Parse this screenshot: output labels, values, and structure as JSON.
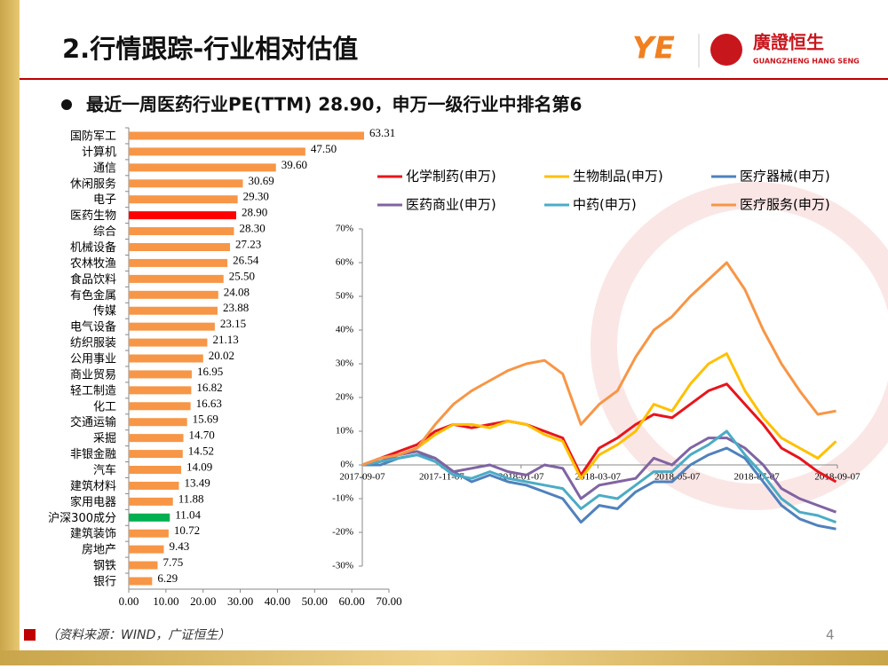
{
  "title": "2.行情跟踪-行业相对估值",
  "logo": {
    "cn": "廣證恒生",
    "en": "GUANGZHENG HANG SENG"
  },
  "bullet": "最近一周医药行业PE(TTM) 28.90，申万一级行业中排名第6",
  "source": "（资料来源：WIND，广证恒生）",
  "page_number": 4,
  "chart_data": [
    {
      "type": "hbar",
      "categories": [
        "国防军工",
        "计算机",
        "通信",
        "休闲服务",
        "电子",
        "医药生物",
        "综合",
        "机械设备",
        "农林牧渔",
        "食品饮料",
        "有色金属",
        "传媒",
        "电气设备",
        "纺织服装",
        "公用事业",
        "商业贸易",
        "轻工制造",
        "化工",
        "交通运输",
        "采掘",
        "非银金融",
        "汽车",
        "建筑材料",
        "家用电器",
        "沪深300成分",
        "建筑装饰",
        "房地产",
        "钢铁",
        "银行"
      ],
      "values": [
        63.31,
        47.5,
        39.6,
        30.69,
        29.3,
        28.9,
        28.3,
        27.23,
        26.54,
        25.5,
        24.08,
        23.88,
        23.15,
        21.13,
        20.02,
        16.95,
        16.82,
        16.63,
        15.69,
        14.7,
        14.52,
        14.09,
        13.49,
        11.88,
        11.04,
        10.72,
        9.43,
        7.75,
        6.29
      ],
      "value_labels": [
        "63.31",
        "47.50",
        "39.60",
        "30.69",
        "29.30",
        "28.90",
        "28.30",
        "27.23",
        "26.54",
        "25.50",
        "24.08",
        "23.88",
        "23.15",
        "21.13",
        "20.02",
        "16.95",
        "16.82",
        "16.63",
        "15.69",
        "14.70",
        "14.52",
        "14.09",
        "13.49",
        "11.88",
        "11.04",
        "10.72",
        "9.43",
        "7.75",
        "6.29"
      ],
      "colors": [
        "#f79646",
        "#f79646",
        "#f79646",
        "#f79646",
        "#f79646",
        "#ff0000",
        "#f79646",
        "#f79646",
        "#f79646",
        "#f79646",
        "#f79646",
        "#f79646",
        "#f79646",
        "#f79646",
        "#f79646",
        "#f79646",
        "#f79646",
        "#f79646",
        "#f79646",
        "#f79646",
        "#f79646",
        "#f79646",
        "#f79646",
        "#f79646",
        "#00b050",
        "#f79646",
        "#f79646",
        "#f79646",
        "#f79646"
      ],
      "xlim": [
        0,
        70
      ],
      "xticks": [
        {
          "value": 0,
          "label": "0.00"
        },
        {
          "value": 10,
          "label": "10.00"
        },
        {
          "value": 20,
          "label": "20.00"
        },
        {
          "value": 30,
          "label": "30.00"
        },
        {
          "value": 40,
          "label": "40.00"
        },
        {
          "value": 50,
          "label": "50.00"
        },
        {
          "value": 60,
          "label": "60.00"
        },
        {
          "value": 70,
          "label": "70.00"
        }
      ]
    },
    {
      "type": "line",
      "x": [
        "2017-09-07",
        "2017-09-21",
        "2017-10-05",
        "2017-10-19",
        "2017-11-02",
        "2017-11-16",
        "2017-11-30",
        "2017-12-14",
        "2017-12-28",
        "2018-01-11",
        "2018-01-25",
        "2018-02-08",
        "2018-02-22",
        "2018-03-08",
        "2018-03-22",
        "2018-04-05",
        "2018-04-19",
        "2018-05-03",
        "2018-05-17",
        "2018-05-31",
        "2018-06-14",
        "2018-06-28",
        "2018-07-12",
        "2018-07-26",
        "2018-08-09",
        "2018-08-23",
        "2018-09-06"
      ],
      "xlim": [
        "2017-09-07",
        "2018-09-07"
      ],
      "xticks": [
        "2017-09-07",
        "2017-11-07",
        "2018-01-07",
        "2018-03-07",
        "2018-05-07",
        "2018-07-07",
        "2018-09-07"
      ],
      "ylim": [
        -30,
        70
      ],
      "yticks": [
        {
          "value": 70,
          "label": "70%"
        },
        {
          "value": 60,
          "label": "60%"
        },
        {
          "value": 50,
          "label": "50%"
        },
        {
          "value": 40,
          "label": "40%"
        },
        {
          "value": 30,
          "label": "30%"
        },
        {
          "value": 20,
          "label": "20%"
        },
        {
          "value": 10,
          "label": "10%"
        },
        {
          "value": 0,
          "label": "0%"
        },
        {
          "value": -10,
          "label": "-10%"
        },
        {
          "value": -20,
          "label": "-20%"
        },
        {
          "value": -30,
          "label": "-30%"
        }
      ],
      "series": [
        {
          "name": "化学制药(申万)",
          "color": "#e8141c",
          "values": [
            0,
            2,
            4,
            6,
            10,
            12,
            11,
            12,
            13,
            12,
            10,
            8,
            -3,
            5,
            8,
            12,
            15,
            14,
            18,
            22,
            24,
            18,
            12,
            5,
            2,
            -2,
            -5
          ]
        },
        {
          "name": "生物制品(申万)",
          "color": "#ffc000",
          "values": [
            0,
            1,
            3,
            5,
            9,
            12,
            12,
            11,
            13,
            12,
            9,
            7,
            -4,
            3,
            6,
            10,
            18,
            16,
            24,
            30,
            33,
            22,
            14,
            8,
            5,
            2,
            7
          ]
        },
        {
          "name": "医疗器械(申万)",
          "color": "#4f81bd",
          "values": [
            0,
            0,
            2,
            3,
            2,
            -2,
            -5,
            -3,
            -5,
            -6,
            -8,
            -10,
            -17,
            -12,
            -13,
            -8,
            -5,
            -5,
            0,
            3,
            5,
            2,
            -5,
            -12,
            -16,
            -18,
            -19
          ]
        },
        {
          "name": "医药商业(申万)",
          "color": "#8064a2",
          "values": [
            0,
            1,
            3,
            4,
            2,
            -2,
            -1,
            0,
            -2,
            -3,
            0,
            -1,
            -10,
            -6,
            -5,
            -4,
            2,
            0,
            5,
            8,
            8,
            5,
            0,
            -7,
            -10,
            -12,
            -14
          ]
        },
        {
          "name": "中药(申万)",
          "color": "#4bacc6",
          "values": [
            0,
            1,
            2,
            3,
            1,
            -3,
            -4,
            -2,
            -4,
            -5,
            -6,
            -7,
            -13,
            -9,
            -10,
            -6,
            -2,
            -2,
            3,
            6,
            10,
            3,
            -3,
            -10,
            -14,
            -15,
            -17
          ]
        },
        {
          "name": "医疗服务(申万)",
          "color": "#f79646",
          "values": [
            0,
            2,
            3,
            5,
            12,
            18,
            22,
            25,
            28,
            30,
            31,
            27,
            12,
            18,
            22,
            32,
            40,
            44,
            50,
            55,
            60,
            52,
            40,
            30,
            22,
            15,
            16
          ]
        }
      ]
    }
  ]
}
